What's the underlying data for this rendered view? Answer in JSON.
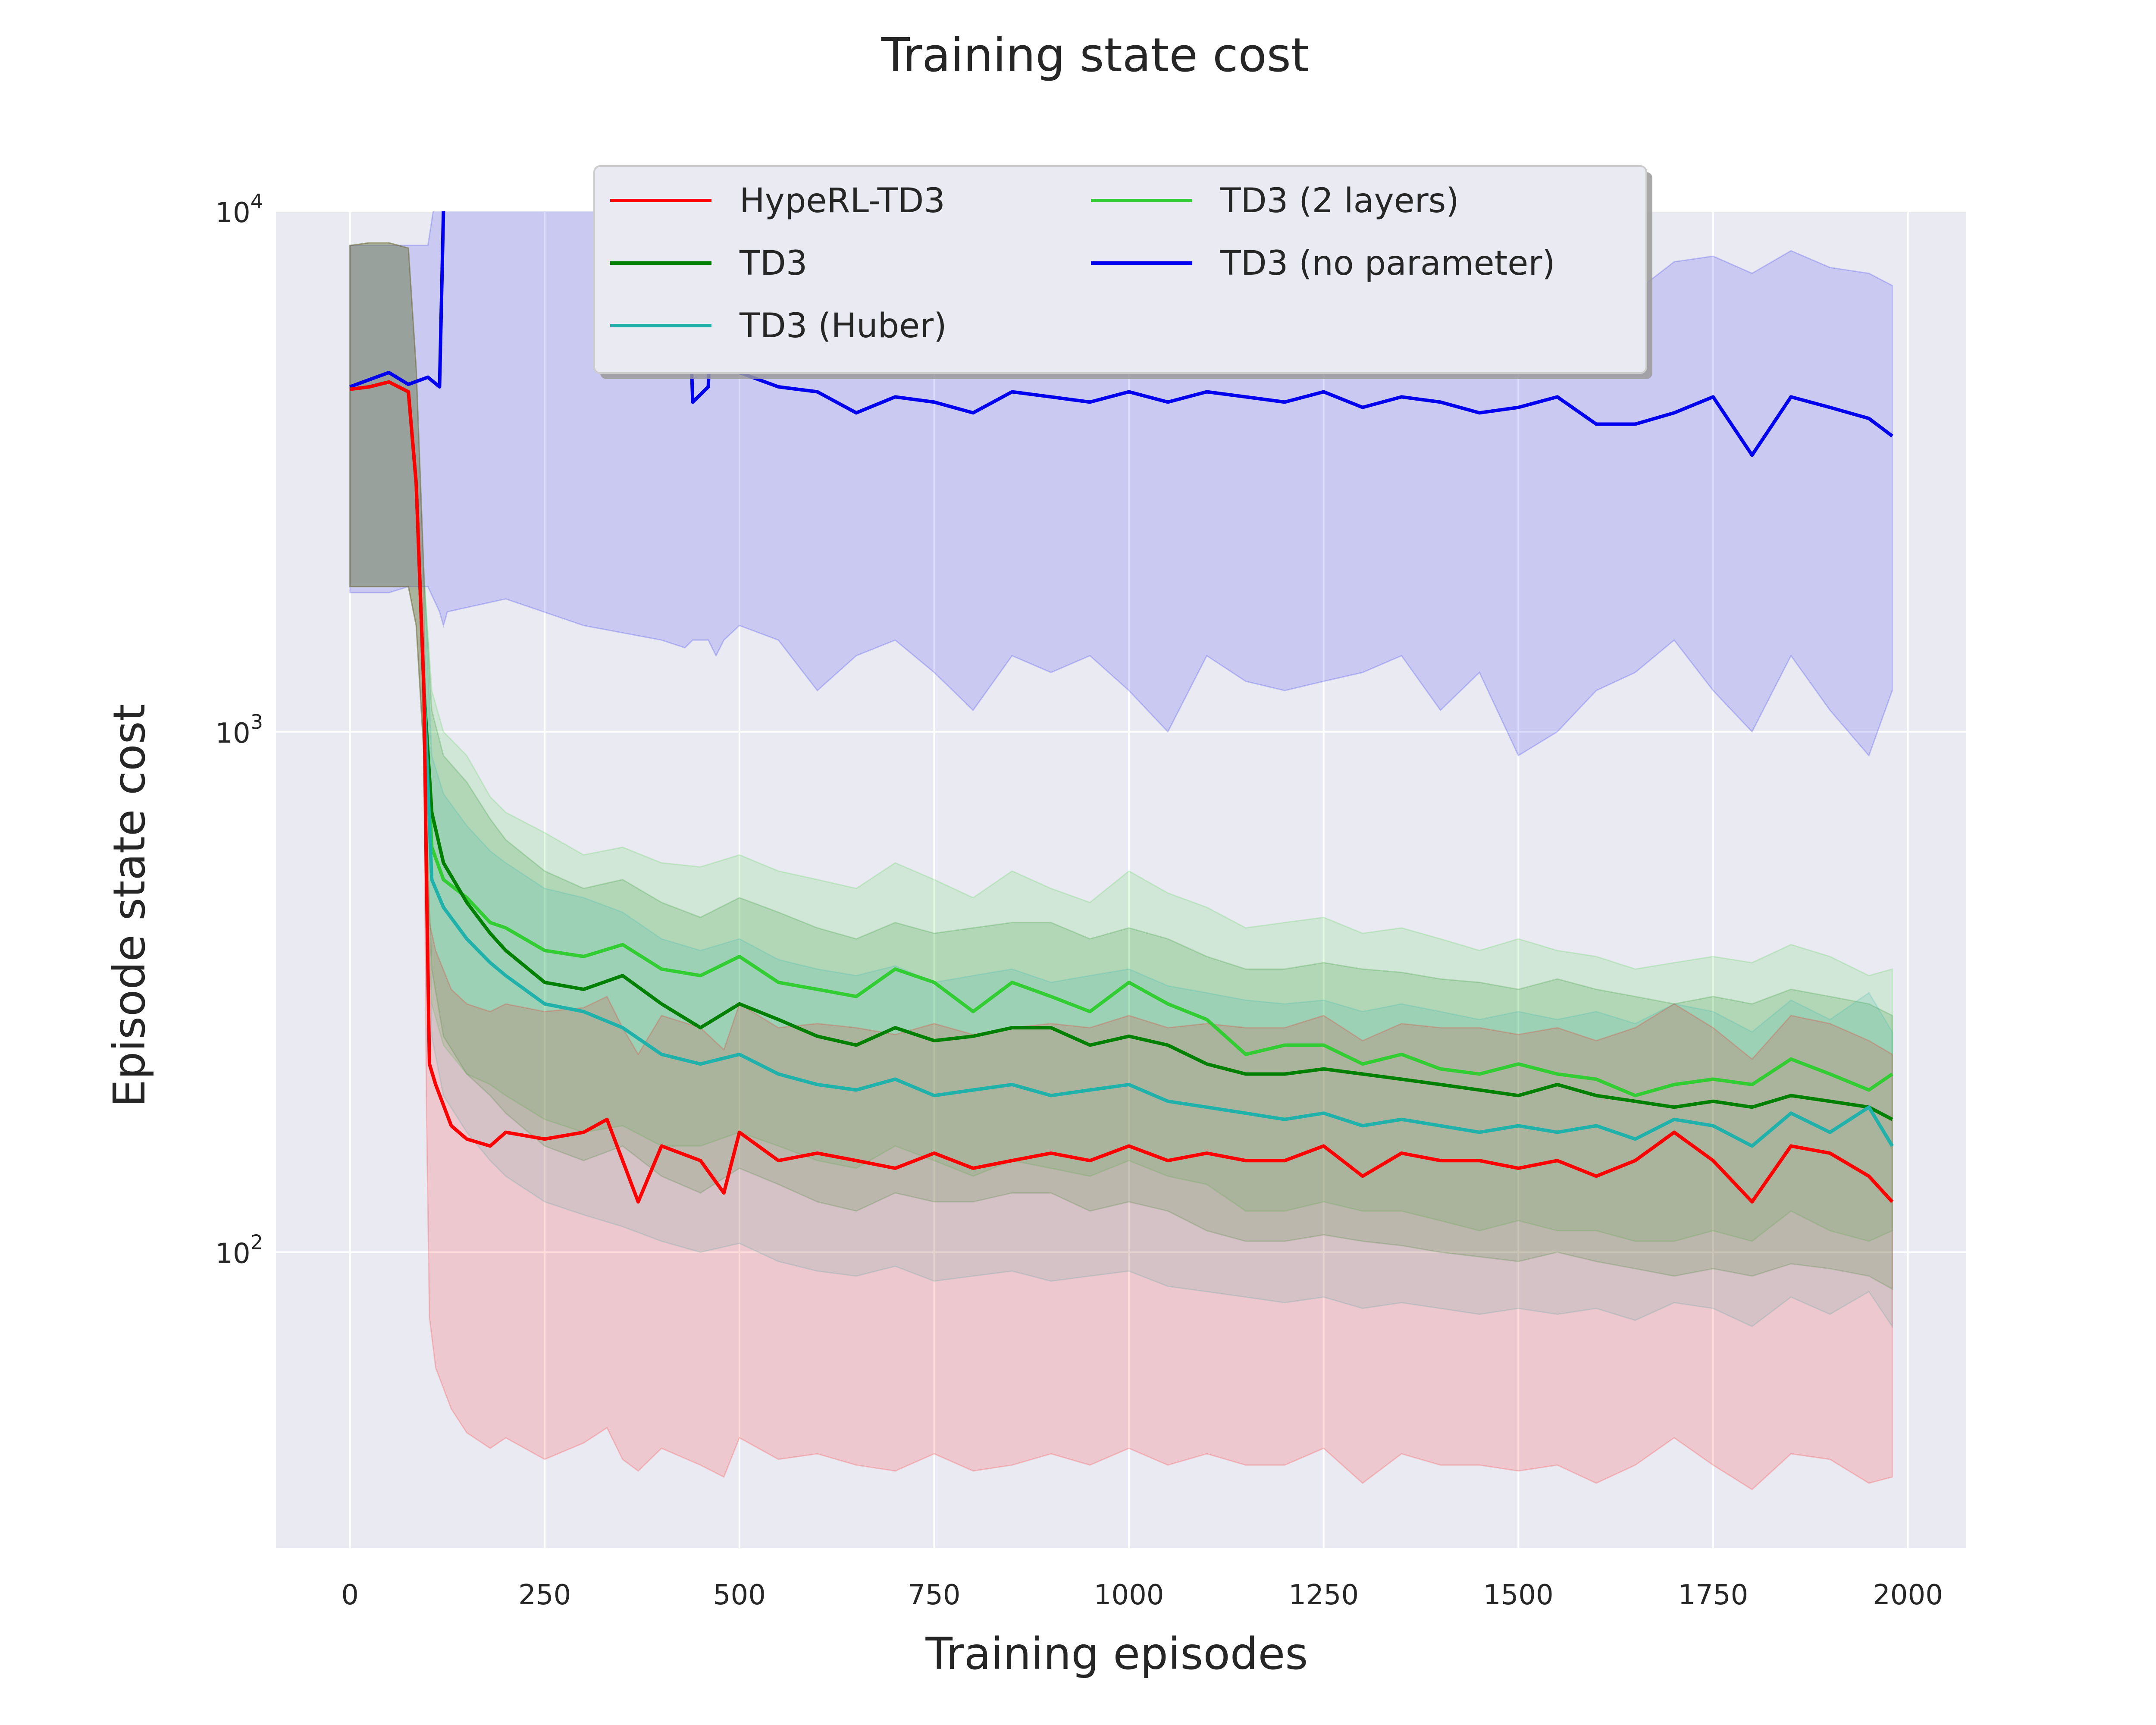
{
  "chart_data": {
    "type": "line",
    "title": "Training state cost",
    "xlabel": "Training episodes",
    "ylabel": "Episode state cost",
    "xlim": [
      -95,
      2075
    ],
    "ylim": [
      27,
      10000
    ],
    "yscale": "log",
    "grid": true,
    "legend_position": "top-center",
    "legend_columns": 2,
    "x_ticks": [
      0,
      250,
      500,
      750,
      1000,
      1250,
      1500,
      1750,
      2000
    ],
    "y_ticks": [
      100,
      1000,
      10000
    ],
    "y_tick_labels": [
      {
        "base": "10",
        "exp": "2"
      },
      {
        "base": "10",
        "exp": "3"
      },
      {
        "base": "10",
        "exp": "4"
      }
    ],
    "series": [
      {
        "name": "TD3 (no parameter)",
        "color": "#0000ee",
        "x": [
          0,
          25,
          50,
          75,
          100,
          115,
          120,
          125,
          200,
          300,
          400,
          430,
          440,
          460,
          470,
          480,
          500,
          550,
          600,
          650,
          700,
          750,
          800,
          850,
          900,
          950,
          1000,
          1050,
          1100,
          1150,
          1200,
          1250,
          1300,
          1350,
          1400,
          1450,
          1500,
          1550,
          1600,
          1650,
          1700,
          1750,
          1800,
          1850,
          1900,
          1950,
          1980
        ],
        "mean": [
          4600,
          4750,
          4900,
          4650,
          4800,
          4600,
          10000,
          12000,
          12000,
          12000,
          12000,
          12000,
          4300,
          4600,
          12000,
          5000,
          4900,
          4600,
          4500,
          4100,
          4400,
          4300,
          4100,
          4500,
          4400,
          4300,
          4500,
          4300,
          4500,
          4400,
          4300,
          4500,
          4200,
          4400,
          4300,
          4100,
          4200,
          4400,
          3900,
          3900,
          4100,
          4400,
          3400,
          4400,
          4200,
          4000,
          3700
        ],
        "low": [
          1850,
          1850,
          1850,
          1900,
          1900,
          1700,
          1600,
          1700,
          1800,
          1600,
          1500,
          1450,
          1500,
          1500,
          1400,
          1500,
          1600,
          1500,
          1200,
          1400,
          1500,
          1300,
          1100,
          1400,
          1300,
          1400,
          1200,
          1000,
          1400,
          1250,
          1200,
          1250,
          1300,
          1400,
          1100,
          1300,
          900,
          1000,
          1200,
          1300,
          1500,
          1200,
          1000,
          1400,
          1100,
          900,
          1200
        ],
        "high": [
          8600,
          8600,
          8600,
          8600,
          8600,
          12000,
          12000,
          12000,
          12000,
          12000,
          12000,
          12000,
          12000,
          12000,
          12000,
          12000,
          12000,
          12000,
          12000,
          12000,
          12000,
          12000,
          12000,
          12000,
          12000,
          12000,
          12000,
          12000,
          12000,
          12000,
          12000,
          12000,
          12000,
          12000,
          12000,
          12000,
          12000,
          8000,
          7500,
          7000,
          8000,
          8200,
          7600,
          8400,
          7800,
          7600,
          7200
        ]
      },
      {
        "name": "TD3 (2 layers)",
        "color": "#32cd32",
        "x": [
          0,
          25,
          50,
          75,
          85,
          95,
          105,
          120,
          150,
          180,
          200,
          250,
          300,
          350,
          400,
          450,
          500,
          550,
          600,
          650,
          700,
          750,
          800,
          850,
          900,
          950,
          1000,
          1050,
          1100,
          1150,
          1200,
          1250,
          1300,
          1350,
          1400,
          1450,
          1500,
          1550,
          1600,
          1650,
          1700,
          1750,
          1800,
          1850,
          1900,
          1950,
          1980
        ],
        "mean": [
          4550,
          4600,
          4700,
          4500,
          3000,
          1200,
          600,
          520,
          480,
          430,
          420,
          380,
          370,
          390,
          350,
          340,
          370,
          330,
          320,
          310,
          350,
          330,
          290,
          330,
          310,
          290,
          330,
          300,
          280,
          240,
          250,
          250,
          230,
          240,
          225,
          220,
          230,
          220,
          215,
          200,
          210,
          215,
          210,
          235,
          220,
          205,
          220
        ],
        "low": [
          1900,
          1900,
          1900,
          1900,
          1600,
          900,
          300,
          250,
          220,
          210,
          200,
          180,
          170,
          175,
          160,
          160,
          170,
          160,
          150,
          145,
          160,
          150,
          140,
          150,
          145,
          140,
          150,
          140,
          135,
          120,
          120,
          125,
          120,
          120,
          115,
          110,
          115,
          110,
          110,
          105,
          105,
          110,
          105,
          120,
          110,
          105,
          110
        ],
        "high": [
          8600,
          8700,
          8700,
          8500,
          5000,
          2000,
          1200,
          1000,
          900,
          750,
          700,
          640,
          580,
          600,
          560,
          550,
          580,
          540,
          520,
          500,
          560,
          520,
          480,
          540,
          500,
          470,
          540,
          490,
          460,
          420,
          430,
          440,
          410,
          420,
          400,
          380,
          400,
          380,
          370,
          350,
          360,
          370,
          360,
          390,
          370,
          340,
          350
        ]
      },
      {
        "name": "TD3",
        "color": "#008000",
        "x": [
          0,
          25,
          50,
          75,
          85,
          95,
          105,
          120,
          150,
          180,
          200,
          250,
          300,
          350,
          400,
          450,
          500,
          550,
          600,
          650,
          700,
          750,
          800,
          850,
          900,
          950,
          1000,
          1050,
          1100,
          1150,
          1200,
          1250,
          1300,
          1350,
          1400,
          1450,
          1500,
          1550,
          1600,
          1650,
          1700,
          1750,
          1800,
          1850,
          1900,
          1950,
          1980
        ],
        "mean": [
          4550,
          4600,
          4700,
          4500,
          3000,
          1200,
          700,
          560,
          470,
          410,
          380,
          330,
          320,
          340,
          300,
          270,
          300,
          280,
          260,
          250,
          270,
          255,
          260,
          270,
          270,
          250,
          260,
          250,
          230,
          220,
          220,
          225,
          220,
          215,
          210,
          205,
          200,
          210,
          200,
          195,
          190,
          195,
          190,
          200,
          195,
          190,
          180
        ],
        "low": [
          1900,
          1900,
          1900,
          1900,
          1600,
          900,
          350,
          260,
          220,
          200,
          185,
          160,
          150,
          160,
          140,
          130,
          145,
          135,
          125,
          120,
          130,
          125,
          125,
          130,
          130,
          120,
          125,
          120,
          110,
          105,
          105,
          108,
          105,
          103,
          100,
          98,
          96,
          100,
          96,
          93,
          90,
          93,
          90,
          95,
          93,
          90,
          85
        ],
        "high": [
          8600,
          8700,
          8700,
          8500,
          5000,
          2000,
          1100,
          900,
          800,
          680,
          620,
          540,
          500,
          520,
          470,
          440,
          480,
          450,
          420,
          400,
          430,
          410,
          420,
          430,
          430,
          400,
          420,
          400,
          370,
          350,
          350,
          360,
          350,
          345,
          335,
          330,
          320,
          335,
          320,
          310,
          300,
          310,
          300,
          320,
          310,
          300,
          285
        ]
      },
      {
        "name": "TD3 (Huber)",
        "color": "#20b2aa",
        "x": [
          0,
          25,
          50,
          75,
          85,
          95,
          105,
          120,
          150,
          180,
          200,
          250,
          300,
          350,
          400,
          450,
          500,
          550,
          600,
          650,
          700,
          750,
          800,
          850,
          900,
          950,
          1000,
          1050,
          1100,
          1150,
          1200,
          1250,
          1300,
          1350,
          1400,
          1450,
          1500,
          1550,
          1600,
          1650,
          1700,
          1750,
          1800,
          1850,
          1900,
          1950,
          1980
        ],
        "mean": [
          4550,
          4600,
          4700,
          4500,
          3000,
          1200,
          520,
          460,
          400,
          360,
          340,
          300,
          290,
          270,
          240,
          230,
          240,
          220,
          210,
          205,
          215,
          200,
          205,
          210,
          200,
          205,
          210,
          195,
          190,
          185,
          180,
          185,
          175,
          180,
          175,
          170,
          175,
          170,
          175,
          165,
          180,
          175,
          160,
          185,
          170,
          190,
          160
        ],
        "low": [
          1900,
          1900,
          1900,
          1900,
          1600,
          900,
          260,
          200,
          170,
          150,
          140,
          125,
          118,
          112,
          105,
          100,
          104,
          96,
          92,
          90,
          94,
          88,
          90,
          92,
          88,
          90,
          92,
          86,
          84,
          82,
          80,
          82,
          78,
          80,
          78,
          76,
          78,
          76,
          78,
          74,
          80,
          78,
          72,
          82,
          76,
          84,
          72
        ],
        "high": [
          8600,
          8700,
          8700,
          8500,
          5000,
          2000,
          900,
          760,
          660,
          590,
          560,
          500,
          480,
          450,
          400,
          380,
          400,
          365,
          350,
          340,
          355,
          330,
          340,
          350,
          330,
          340,
          350,
          325,
          315,
          305,
          300,
          305,
          290,
          300,
          290,
          280,
          290,
          280,
          290,
          275,
          300,
          290,
          265,
          305,
          280,
          315,
          265
        ]
      },
      {
        "name": "HypeRL-TD3",
        "color": "#ff0000",
        "x": [
          0,
          25,
          50,
          75,
          85,
          95,
          98,
          102,
          110,
          130,
          150,
          180,
          200,
          250,
          300,
          330,
          350,
          370,
          400,
          450,
          480,
          500,
          550,
          600,
          650,
          700,
          750,
          800,
          850,
          900,
          950,
          1000,
          1050,
          1100,
          1150,
          1200,
          1250,
          1300,
          1350,
          1400,
          1450,
          1500,
          1550,
          1600,
          1650,
          1700,
          1750,
          1800,
          1850,
          1900,
          1950,
          1980
        ],
        "mean": [
          4550,
          4600,
          4700,
          4500,
          3000,
          1200,
          550,
          230,
          210,
          175,
          165,
          160,
          170,
          165,
          170,
          180,
          150,
          125,
          160,
          150,
          130,
          170,
          150,
          155,
          150,
          145,
          155,
          145,
          150,
          155,
          150,
          160,
          150,
          155,
          150,
          150,
          160,
          140,
          155,
          150,
          150,
          145,
          150,
          140,
          150,
          170,
          150,
          125,
          160,
          155,
          140,
          125
        ],
        "low": [
          1900,
          1900,
          1900,
          1900,
          1600,
          900,
          200,
          75,
          60,
          50,
          45,
          42,
          44,
          40,
          43,
          46,
          40,
          38,
          42,
          39,
          37,
          44,
          40,
          41,
          39,
          38,
          41,
          38,
          39,
          41,
          39,
          42,
          39,
          41,
          39,
          39,
          42,
          36,
          41,
          39,
          39,
          38,
          39,
          36,
          39,
          44,
          39,
          35,
          41,
          40,
          36,
          37
        ],
        "high": [
          8600,
          8700,
          8700,
          8500,
          5000,
          2000,
          700,
          430,
          380,
          320,
          300,
          290,
          300,
          290,
          295,
          310,
          270,
          240,
          285,
          270,
          245,
          300,
          270,
          275,
          270,
          262,
          275,
          262,
          270,
          275,
          270,
          285,
          270,
          275,
          270,
          270,
          285,
          255,
          275,
          270,
          270,
          262,
          270,
          255,
          270,
          300,
          270,
          235,
          285,
          275,
          255,
          240
        ]
      }
    ],
    "legend_order": [
      "HypeRL-TD3",
      "TD3",
      "TD3 (Huber)",
      "TD3 (2 layers)",
      "TD3 (no parameter)"
    ]
  }
}
